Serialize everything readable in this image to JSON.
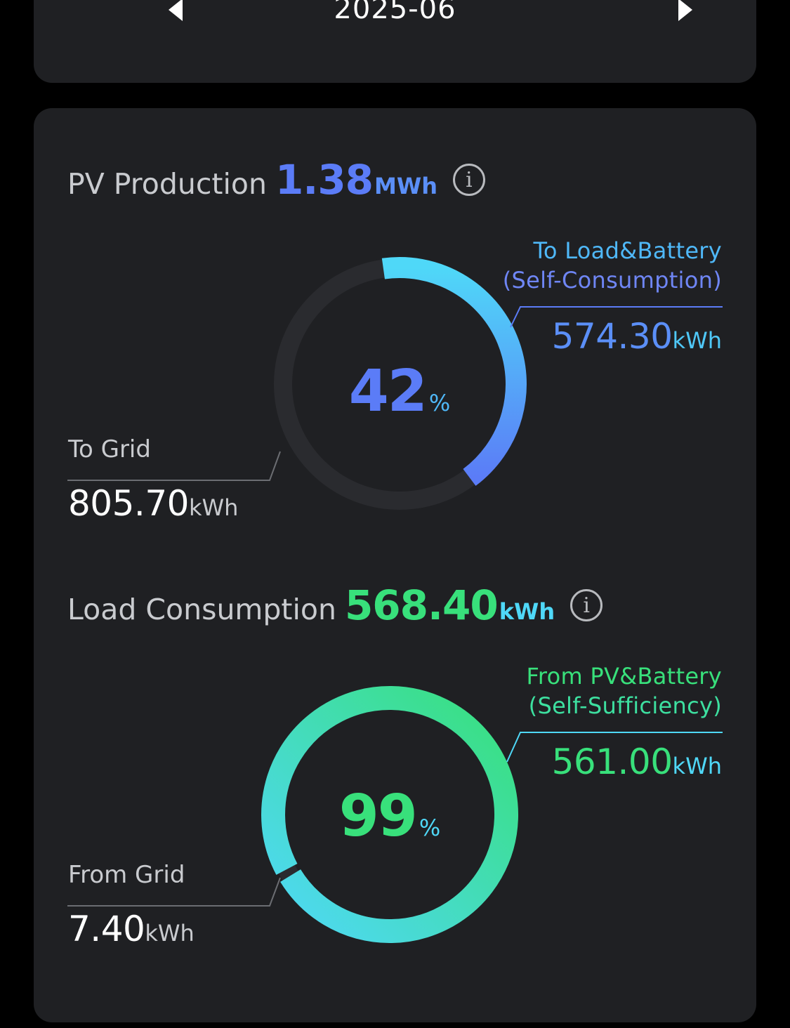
{
  "date_nav": {
    "month": "2025-06"
  },
  "pv": {
    "label": "PV Production",
    "value": "1.38",
    "unit": "MWh",
    "self_consumption_percent": 42,
    "percent_label": "42",
    "percent_sign": "%",
    "to_load_title_1": "To Load&Battery",
    "to_load_title_2": "(Self-Consumption)",
    "to_load_value": "574.30",
    "to_load_unit": "kWh",
    "to_grid_title": "To Grid",
    "to_grid_value": "805.70",
    "to_grid_unit": "kWh"
  },
  "load": {
    "label": "Load Consumption",
    "value": "568.40",
    "unit": "kWh",
    "self_sufficiency_percent": 99,
    "percent_label": "99",
    "percent_sign": "%",
    "from_pv_title_1": "From PV&Battery",
    "from_pv_title_2": "(Self-Sufficiency)",
    "from_pv_value": "561.00",
    "from_pv_unit": "kWh",
    "from_grid_title": "From Grid",
    "from_grid_value": "7.40",
    "from_grid_unit": "kWh"
  },
  "colors": {
    "blue": "#5b7cf7",
    "cyan": "#4fd8f8",
    "green": "#38e07b",
    "track": "#2a2b2f",
    "muted": "#c9cbcf",
    "line": "#6b6d72"
  }
}
